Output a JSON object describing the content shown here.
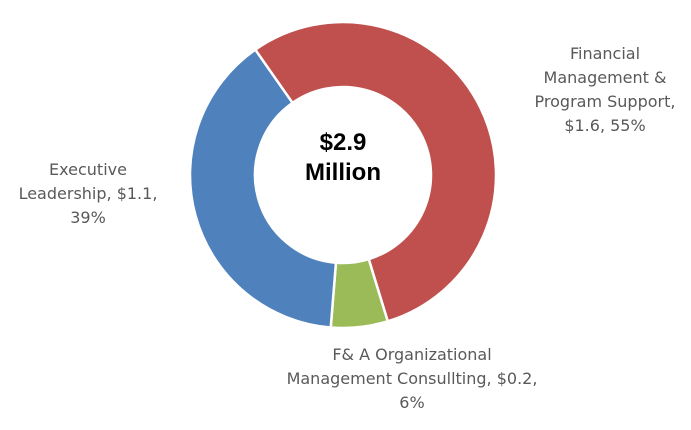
{
  "chart_data": {
    "type": "donut",
    "center_label": "$2.9 Million",
    "categories": [
      "Financial Management & Program Support",
      "F& A Organizational Management Consullting",
      "Executive Leadership"
    ],
    "values": [
      55,
      6,
      39
    ],
    "value_labels": [
      "Financial Management & Program Support, $1.6, 55%",
      "F& A Organizational Management Consullting, $0.2, 6%",
      "Executive Leadership, $1.1, 39%"
    ],
    "colors": [
      "#c0504d",
      "#9bbb59",
      "#4f81bd"
    ]
  }
}
